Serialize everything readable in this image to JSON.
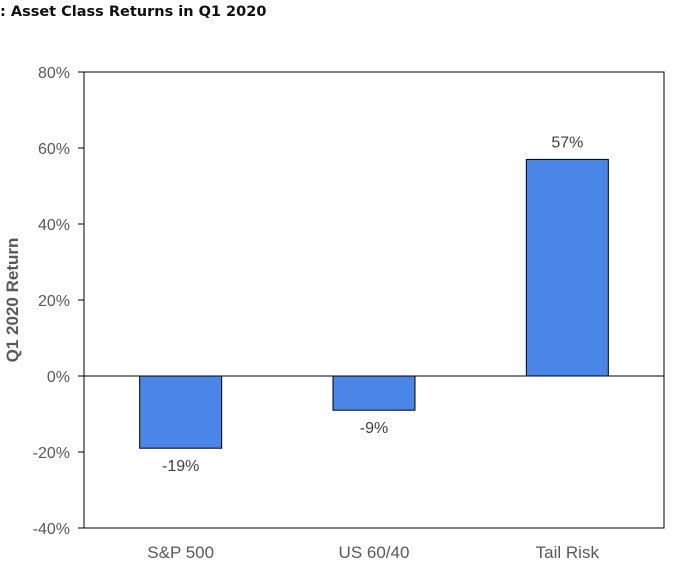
{
  "chart_data": {
    "type": "bar",
    "title": ": Asset Class Returns in Q1 2020",
    "ylabel": "Q1 2020  Return",
    "xlabel": "",
    "categories": [
      "S&P 500",
      "US 60/40",
      "Tail Risk"
    ],
    "values": [
      -19,
      -9,
      57
    ],
    "data_labels": [
      "-19%",
      "-9%",
      "57%"
    ],
    "ylim": [
      -40,
      80
    ],
    "yticks": [
      80,
      60,
      40,
      20,
      0,
      -20,
      -40
    ],
    "ytick_labels": [
      "80%",
      "60%",
      "40%",
      "20%",
      "0%",
      "-20%",
      "-40%"
    ],
    "bar_color": "#4a86e8",
    "grid": false,
    "legend": "none"
  }
}
